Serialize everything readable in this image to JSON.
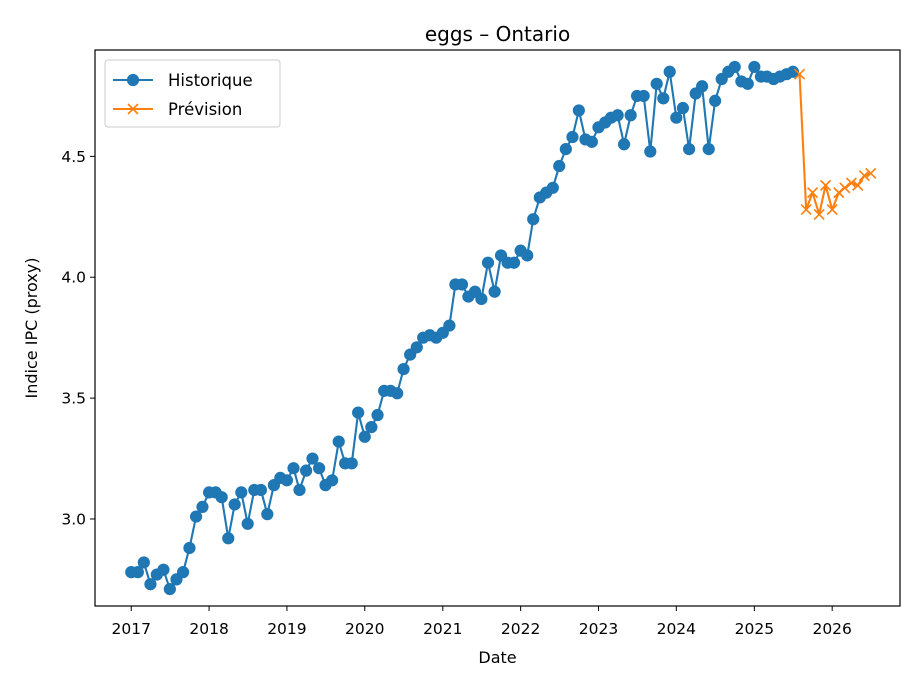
{
  "chart_data": {
    "type": "line",
    "title": "eggs – Ontario",
    "xlabel": "Date",
    "ylabel": "Indice IPC (proxy)",
    "x_ticks": [
      "2017",
      "2018",
      "2019",
      "2020",
      "2021",
      "2022",
      "2023",
      "2024",
      "2025",
      "2026"
    ],
    "y_ticks": [
      "3.0",
      "3.5",
      "4.0",
      "4.5"
    ],
    "xlim": [
      "2016-07-15",
      "2026-11-15"
    ],
    "ylim": [
      2.64,
      4.94
    ],
    "grid": false,
    "legend_position": "top-left",
    "series": [
      {
        "name": "Historique",
        "color": "#1f77b4",
        "marker": "circle",
        "points": [
          [
            "2017-01-01",
            2.78
          ],
          [
            "2017-02-01",
            2.78
          ],
          [
            "2017-03-01",
            2.82
          ],
          [
            "2017-04-01",
            2.73
          ],
          [
            "2017-05-01",
            2.77
          ],
          [
            "2017-06-01",
            2.79
          ],
          [
            "2017-07-01",
            2.71
          ],
          [
            "2017-08-01",
            2.75
          ],
          [
            "2017-09-01",
            2.78
          ],
          [
            "2017-10-01",
            2.88
          ],
          [
            "2017-11-01",
            3.01
          ],
          [
            "2017-12-01",
            3.05
          ],
          [
            "2018-01-01",
            3.11
          ],
          [
            "2018-02-01",
            3.11
          ],
          [
            "2018-03-01",
            3.09
          ],
          [
            "2018-04-01",
            2.92
          ],
          [
            "2018-05-01",
            3.06
          ],
          [
            "2018-06-01",
            3.11
          ],
          [
            "2018-07-01",
            2.98
          ],
          [
            "2018-08-01",
            3.12
          ],
          [
            "2018-09-01",
            3.12
          ],
          [
            "2018-10-01",
            3.02
          ],
          [
            "2018-11-01",
            3.14
          ],
          [
            "2018-12-01",
            3.17
          ],
          [
            "2019-01-01",
            3.16
          ],
          [
            "2019-02-01",
            3.21
          ],
          [
            "2019-03-01",
            3.12
          ],
          [
            "2019-04-01",
            3.2
          ],
          [
            "2019-05-01",
            3.25
          ],
          [
            "2019-06-01",
            3.21
          ],
          [
            "2019-07-01",
            3.14
          ],
          [
            "2019-08-01",
            3.16
          ],
          [
            "2019-09-01",
            3.32
          ],
          [
            "2019-10-01",
            3.23
          ],
          [
            "2019-11-01",
            3.23
          ],
          [
            "2019-12-01",
            3.44
          ],
          [
            "2020-01-01",
            3.34
          ],
          [
            "2020-02-01",
            3.38
          ],
          [
            "2020-03-01",
            3.43
          ],
          [
            "2020-04-01",
            3.53
          ],
          [
            "2020-05-01",
            3.53
          ],
          [
            "2020-06-01",
            3.52
          ],
          [
            "2020-07-01",
            3.62
          ],
          [
            "2020-08-01",
            3.68
          ],
          [
            "2020-09-01",
            3.71
          ],
          [
            "2020-10-01",
            3.75
          ],
          [
            "2020-11-01",
            3.76
          ],
          [
            "2020-12-01",
            3.75
          ],
          [
            "2021-01-01",
            3.77
          ],
          [
            "2021-02-01",
            3.8
          ],
          [
            "2021-03-01",
            3.97
          ],
          [
            "2021-04-01",
            3.97
          ],
          [
            "2021-05-01",
            3.92
          ],
          [
            "2021-06-01",
            3.94
          ],
          [
            "2021-07-01",
            3.91
          ],
          [
            "2021-08-01",
            4.06
          ],
          [
            "2021-09-01",
            3.94
          ],
          [
            "2021-10-01",
            4.09
          ],
          [
            "2021-11-01",
            4.06
          ],
          [
            "2021-12-01",
            4.06
          ],
          [
            "2022-01-01",
            4.11
          ],
          [
            "2022-02-01",
            4.09
          ],
          [
            "2022-03-01",
            4.24
          ],
          [
            "2022-04-01",
            4.33
          ],
          [
            "2022-05-01",
            4.35
          ],
          [
            "2022-06-01",
            4.37
          ],
          [
            "2022-07-01",
            4.46
          ],
          [
            "2022-08-01",
            4.53
          ],
          [
            "2022-09-01",
            4.58
          ],
          [
            "2022-10-01",
            4.69
          ],
          [
            "2022-11-01",
            4.57
          ],
          [
            "2022-12-01",
            4.56
          ],
          [
            "2023-01-01",
            4.62
          ],
          [
            "2023-02-01",
            4.64
          ],
          [
            "2023-03-01",
            4.66
          ],
          [
            "2023-04-01",
            4.67
          ],
          [
            "2023-05-01",
            4.55
          ],
          [
            "2023-06-01",
            4.67
          ],
          [
            "2023-07-01",
            4.75
          ],
          [
            "2023-08-01",
            4.75
          ],
          [
            "2023-09-01",
            4.52
          ],
          [
            "2023-10-01",
            4.8
          ],
          [
            "2023-11-01",
            4.74
          ],
          [
            "2023-12-01",
            4.85
          ],
          [
            "2024-01-01",
            4.66
          ],
          [
            "2024-02-01",
            4.7
          ],
          [
            "2024-03-01",
            4.53
          ],
          [
            "2024-04-01",
            4.76
          ],
          [
            "2024-05-01",
            4.79
          ],
          [
            "2024-06-01",
            4.53
          ],
          [
            "2024-07-01",
            4.73
          ],
          [
            "2024-08-01",
            4.82
          ],
          [
            "2024-09-01",
            4.85
          ],
          [
            "2024-10-01",
            4.87
          ],
          [
            "2024-11-01",
            4.81
          ],
          [
            "2024-12-01",
            4.8
          ],
          [
            "2025-01-01",
            4.87
          ],
          [
            "2025-02-01",
            4.83
          ],
          [
            "2025-03-01",
            4.83
          ],
          [
            "2025-04-01",
            4.82
          ],
          [
            "2025-05-01",
            4.83
          ],
          [
            "2025-06-01",
            4.84
          ],
          [
            "2025-07-01",
            4.85
          ]
        ]
      },
      {
        "name": "Prévision",
        "color": "#ff7f0e",
        "marker": "x",
        "points": [
          [
            "2025-08-01",
            4.84
          ],
          [
            "2025-09-01",
            4.28
          ],
          [
            "2025-10-01",
            4.35
          ],
          [
            "2025-11-01",
            4.26
          ],
          [
            "2025-12-01",
            4.38
          ],
          [
            "2026-01-01",
            4.28
          ],
          [
            "2026-02-01",
            4.35
          ],
          [
            "2026-03-01",
            4.37
          ],
          [
            "2026-04-01",
            4.39
          ],
          [
            "2026-05-01",
            4.38
          ],
          [
            "2026-06-01",
            4.42
          ],
          [
            "2026-07-01",
            4.43
          ]
        ]
      }
    ]
  }
}
